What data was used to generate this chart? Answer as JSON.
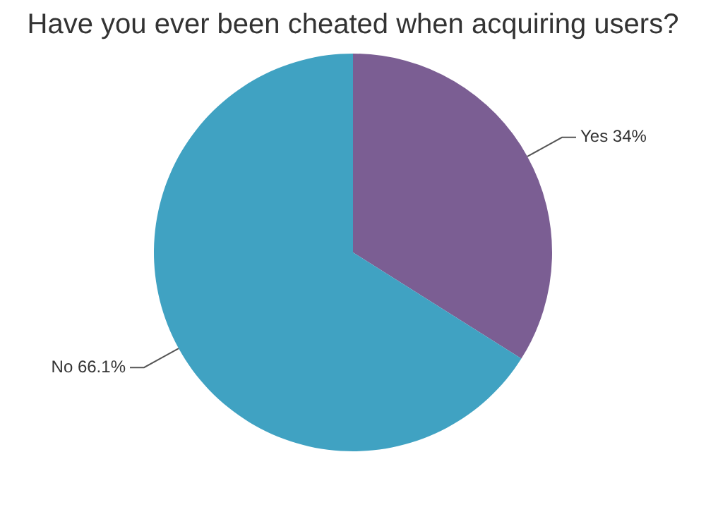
{
  "chart_data": {
    "type": "pie",
    "title": "Have you ever been cheated when acquiring users?",
    "categories": [
      "Yes",
      "No"
    ],
    "values": [
      34,
      66.1
    ],
    "value_labels": [
      "34%",
      "66.1%"
    ],
    "colors": [
      "#7b5e93",
      "#40a2c2"
    ],
    "legend": false
  }
}
